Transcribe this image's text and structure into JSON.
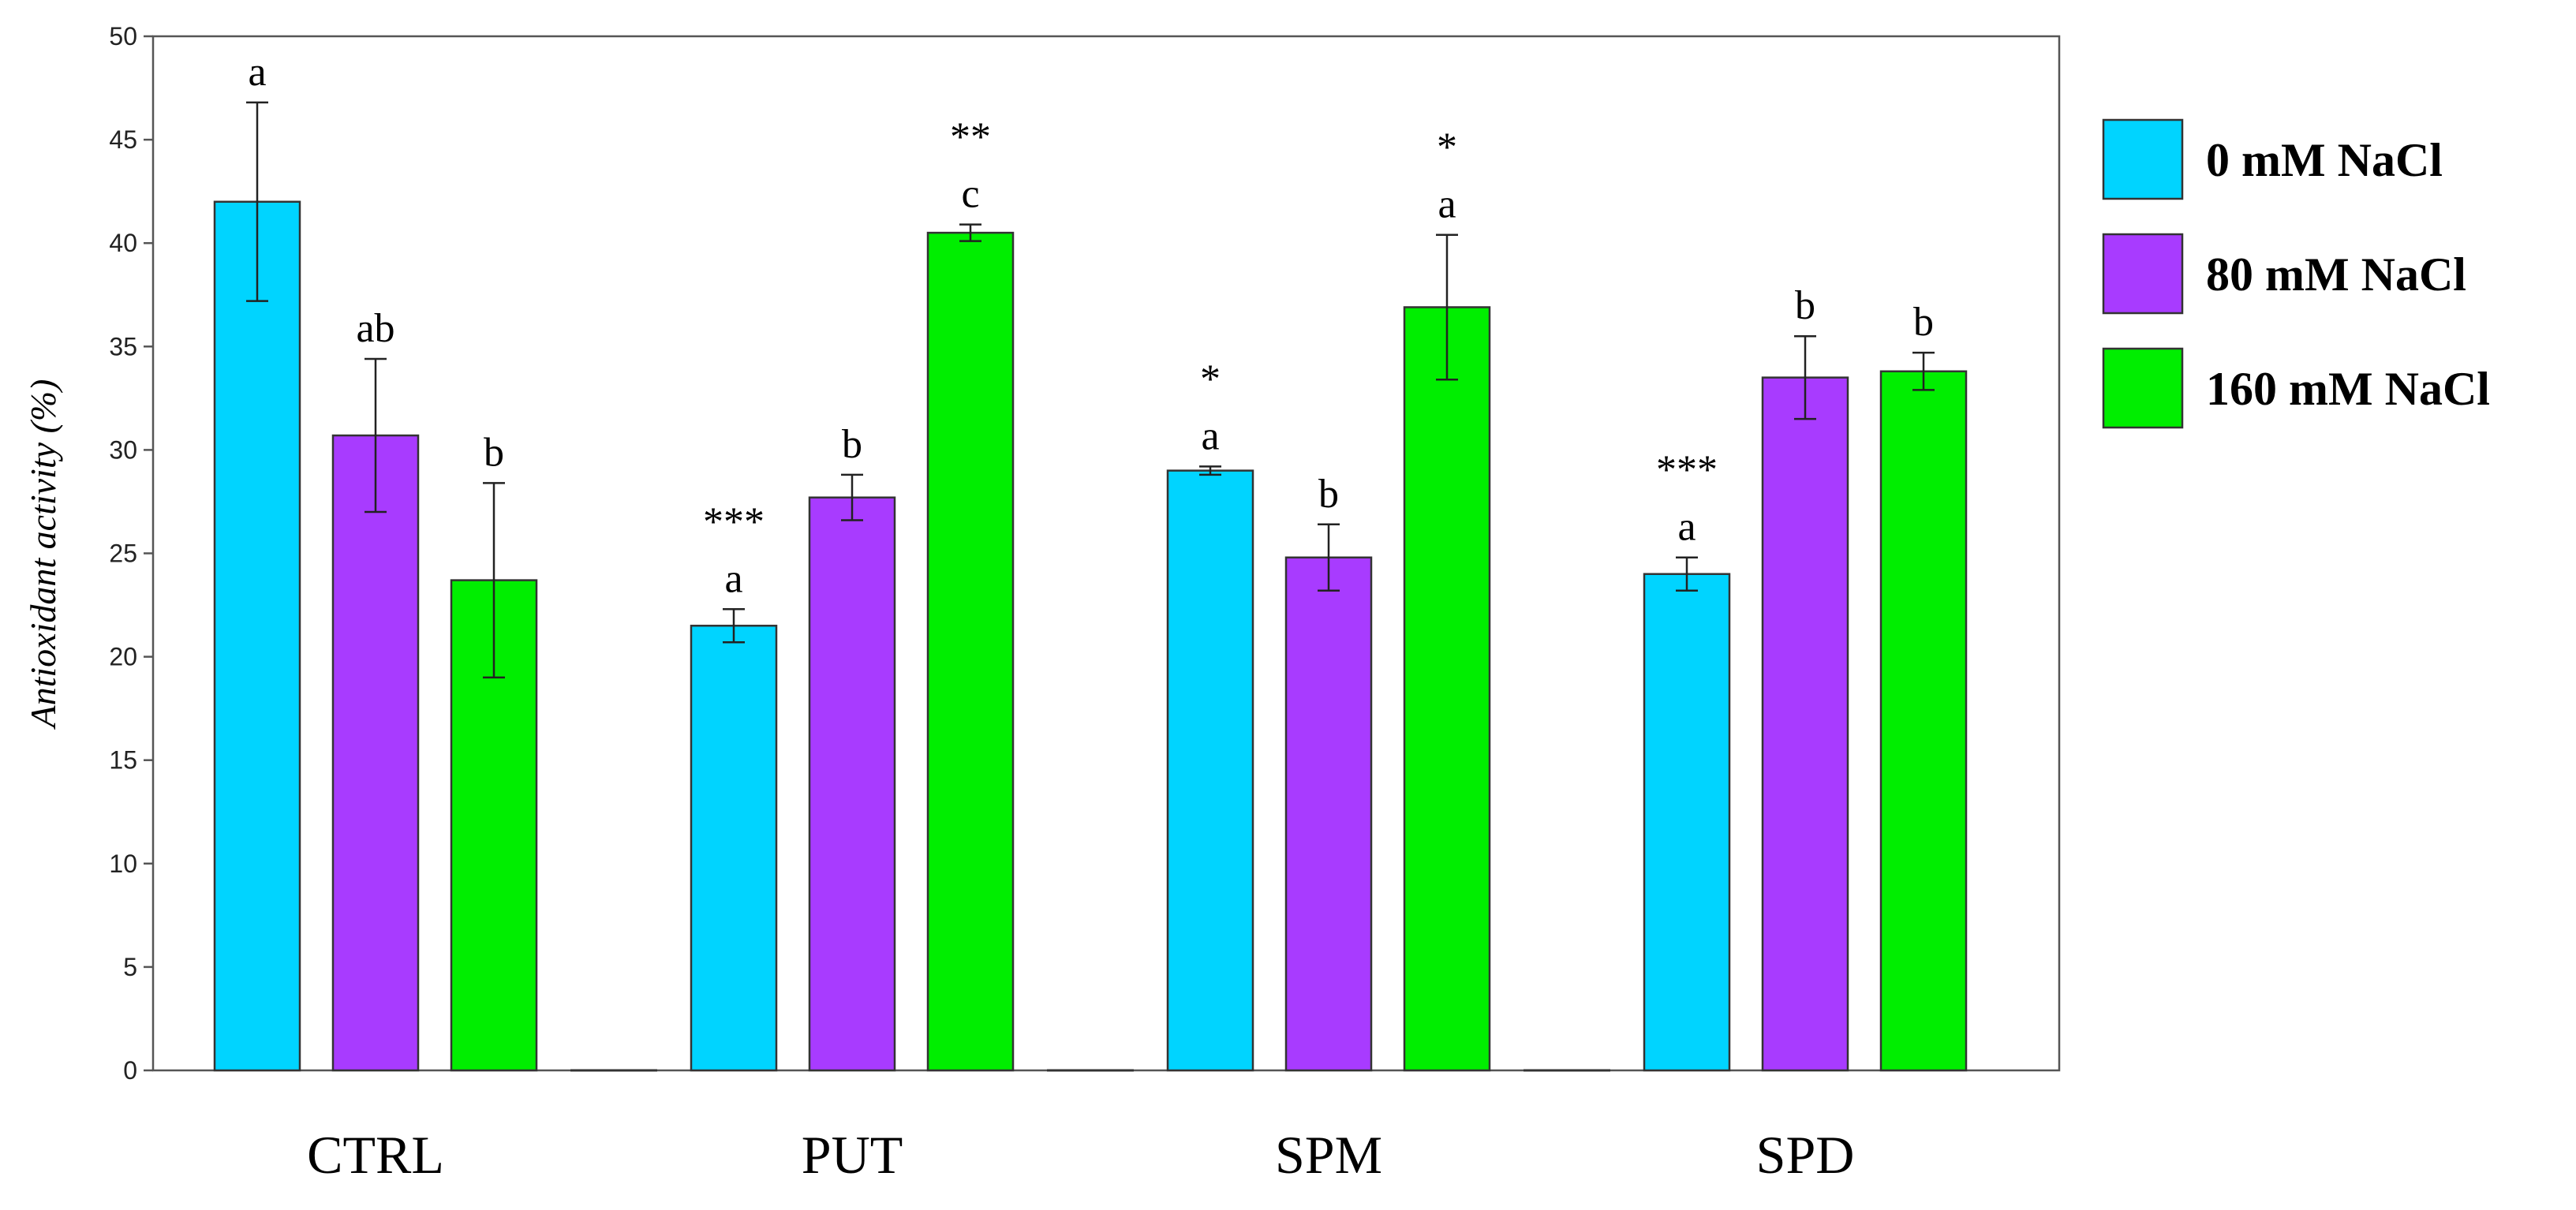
{
  "chart_data": {
    "type": "bar",
    "title": "",
    "xlabel": "",
    "ylabel": "Antioxidant activity (%)",
    "ylim": [
      0,
      50
    ],
    "yticks": [
      0,
      5,
      10,
      15,
      20,
      25,
      30,
      35,
      40,
      45,
      50
    ],
    "grid": false,
    "legend_position": "right",
    "categories": [
      "CTRL",
      "PUT",
      "SPM",
      "SPD"
    ],
    "series": [
      {
        "name": "0 mM NaCl",
        "color": "#00D4FF",
        "values": [
          42.0,
          21.5,
          29.0,
          24.0
        ],
        "errors": [
          4.8,
          0.8,
          0.2,
          0.8
        ],
        "letters": [
          "a",
          "a",
          "a",
          "a"
        ],
        "stars": [
          "",
          "***",
          "*",
          "***"
        ]
      },
      {
        "name": "80 mM NaCl",
        "color": "#A83BFF",
        "values": [
          30.7,
          27.7,
          24.8,
          33.5
        ],
        "errors": [
          3.7,
          1.1,
          1.6,
          2.0
        ],
        "letters": [
          "ab",
          "b",
          "b",
          "b"
        ],
        "stars": [
          "",
          "",
          "",
          ""
        ]
      },
      {
        "name": "160 mM NaCl",
        "color": "#00EE00",
        "values": [
          23.7,
          40.5,
          36.9,
          33.8
        ],
        "errors": [
          4.7,
          0.4,
          3.5,
          0.9
        ],
        "letters": [
          "b",
          "c",
          "a",
          "b"
        ],
        "stars": [
          "",
          "**",
          "*",
          ""
        ]
      }
    ]
  }
}
